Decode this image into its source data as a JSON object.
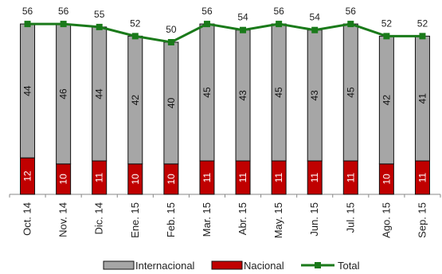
{
  "chart_data": {
    "type": "bar",
    "stacked": true,
    "categories": [
      "Oct. 14",
      "Nov. 14",
      "Dic. 14",
      "Ene. 15",
      "Feb. 15",
      "Mar. 15",
      "Abr. 15",
      "May. 15",
      "Jun. 15",
      "Jul. 15",
      "Ago. 15",
      "Sep. 15"
    ],
    "series": [
      {
        "name": "Internacional",
        "type": "bar",
        "color": "#a6a6a6",
        "values": [
          44,
          46,
          44,
          42,
          40,
          45,
          43,
          45,
          43,
          45,
          42,
          41
        ]
      },
      {
        "name": "Nacional",
        "type": "bar",
        "color": "#c00000",
        "values": [
          12,
          10,
          11,
          10,
          10,
          11,
          11,
          11,
          11,
          11,
          10,
          11
        ]
      },
      {
        "name": "Total",
        "type": "line",
        "color": "#1a7a1a",
        "values": [
          56,
          56,
          55,
          52,
          50,
          56,
          54,
          56,
          54,
          56,
          52,
          52
        ]
      }
    ],
    "legend": {
      "position": "bottom"
    },
    "ylim": [
      0,
      60
    ],
    "grid": false,
    "title": "",
    "xlabel": "",
    "ylabel": ""
  }
}
